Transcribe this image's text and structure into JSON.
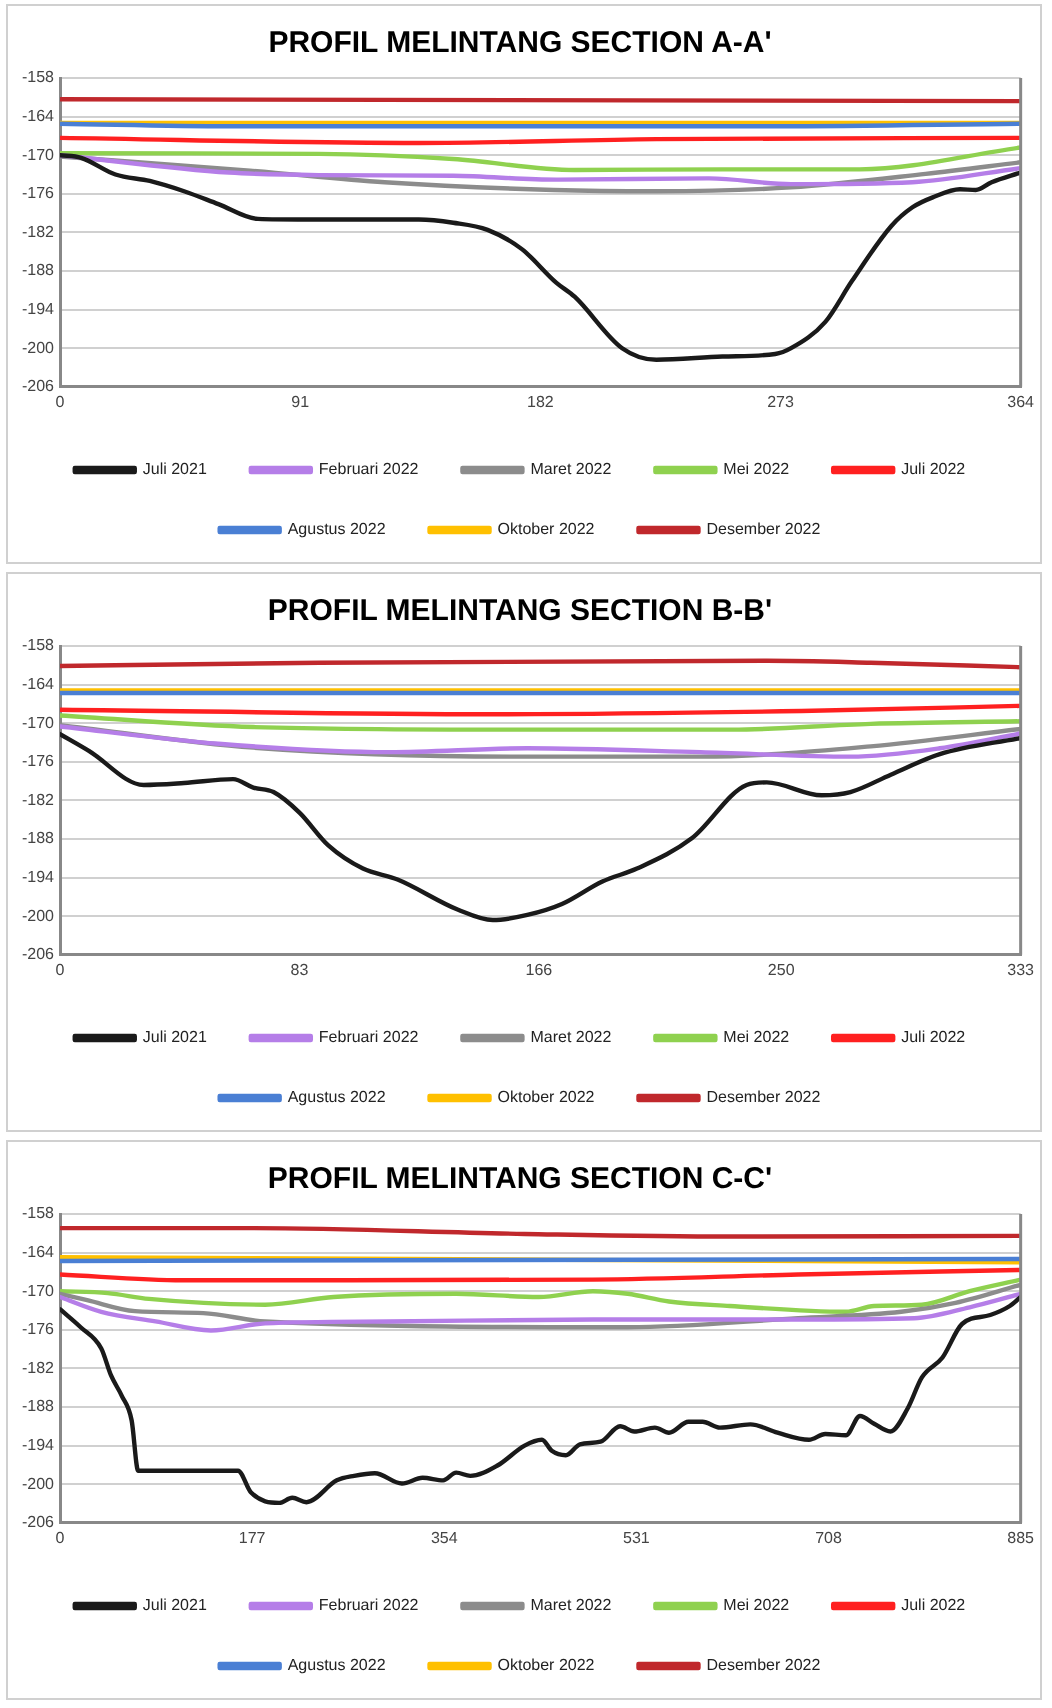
{
  "chart_data": [
    {
      "type": "line",
      "title": "PROFIL MELINTANG SECTION A-A'",
      "xlim": [
        0,
        364
      ],
      "xticks": [
        0,
        91,
        182,
        273,
        364
      ],
      "ylim": [
        -206,
        -158
      ],
      "yticks": [
        -158,
        -164,
        -170,
        -176,
        -182,
        -188,
        -194,
        -200,
        -206
      ],
      "grid": "y",
      "legend": "bottom",
      "marker": "none",
      "line_style": "solid",
      "series": [
        {
          "name": "Juli 2021",
          "color": "#1a1a1a",
          "x": [
            0,
            8,
            21,
            34,
            47,
            60,
            75,
            93,
            136,
            149,
            162,
            175,
            188,
            195,
            213,
            226,
            251,
            271,
            277,
            290,
            300,
            315,
            323,
            331,
            341,
            347,
            353,
            364
          ],
          "values": [
            -170,
            -170.4,
            -173,
            -174,
            -175.6,
            -177.6,
            -179.9,
            -180,
            -180,
            -180.5,
            -181.6,
            -184.6,
            -189.8,
            -192,
            -200,
            -201.8,
            -201.3,
            -200.9,
            -200,
            -195.9,
            -189.6,
            -181,
            -178.1,
            -176.5,
            -175.3,
            -175.4,
            -174.2,
            -172.7
          ]
        },
        {
          "name": "Februari 2022",
          "color": "#b57ee8",
          "x": [
            0,
            64,
            98,
            149,
            188,
            246,
            277,
            323,
            364
          ],
          "values": [
            -170,
            -172.7,
            -173.1,
            -173.2,
            -173.8,
            -173.6,
            -174.5,
            -174.2,
            -172
          ]
        },
        {
          "name": "Maret 2022",
          "color": "#8c8c8c",
          "x": [
            0,
            72,
            123,
            187,
            226,
            277,
            328,
            364
          ],
          "values": [
            -170.2,
            -172.4,
            -174.2,
            -175.4,
            -175.6,
            -175,
            -172.9,
            -171.1
          ]
        },
        {
          "name": "Mei 2022",
          "color": "#8fd14f",
          "x": [
            0,
            98,
            149,
            195,
            251,
            303,
            364
          ],
          "values": [
            -169.7,
            -169.8,
            -170.6,
            -172.3,
            -172.2,
            -172.2,
            -168.8
          ]
        },
        {
          "name": "Juli 2022",
          "color": "#ff2020",
          "x": [
            0,
            136,
            226,
            364
          ],
          "values": [
            -167.3,
            -168.1,
            -167.5,
            -167.3
          ]
        },
        {
          "name": "Agustus 2022",
          "color": "#4a7fd4",
          "x": [
            0,
            64,
            271,
            364
          ],
          "values": [
            -165.1,
            -165.5,
            -165.5,
            -165.1
          ]
        },
        {
          "name": "Oktober 2022",
          "color": "#ffc000",
          "x": [
            0,
            364
          ],
          "values": [
            -165,
            -165
          ]
        },
        {
          "name": "Desember 2022",
          "color": "#c0282c",
          "x": [
            0,
            364
          ],
          "values": [
            -161.3,
            -161.6
          ]
        }
      ]
    },
    {
      "type": "line",
      "title": "PROFIL MELINTANG SECTION B-B'",
      "xlim": [
        0,
        333
      ],
      "xticks": [
        0,
        83,
        166,
        250,
        333
      ],
      "ylim": [
        -206,
        -158
      ],
      "yticks": [
        -158,
        -164,
        -170,
        -176,
        -182,
        -188,
        -194,
        -200,
        -206
      ],
      "grid": "y",
      "legend": "bottom",
      "marker": "none",
      "line_style": "solid",
      "series": [
        {
          "name": "Juli 2021",
          "color": "#1a1a1a",
          "x": [
            0,
            10,
            29,
            43,
            60,
            67,
            74,
            83,
            93,
            105,
            117,
            138,
            150,
            162,
            174,
            188,
            200,
            219,
            238,
            245,
            264,
            274,
            288,
            305,
            333
          ],
          "values": [
            -171.7,
            -174.3,
            -179.6,
            -179.3,
            -178.7,
            -180,
            -180.7,
            -183.9,
            -189,
            -192.6,
            -194.3,
            -199,
            -200.6,
            -199.8,
            -198.1,
            -194.6,
            -192.6,
            -187.9,
            -179.6,
            -179.2,
            -181.2,
            -180.7,
            -178,
            -174.8,
            -172.3
          ]
        },
        {
          "name": "Februari 2022",
          "color": "#b57ee8",
          "x": [
            0,
            55,
            114,
            162,
            222,
            274,
            305,
            333
          ],
          "values": [
            -170.5,
            -173.2,
            -174.5,
            -173.9,
            -174.5,
            -175.2,
            -173.9,
            -171.6
          ]
        },
        {
          "name": "Maret 2022",
          "color": "#8c8c8c",
          "x": [
            0,
            67,
            162,
            222,
            281,
            333
          ],
          "values": [
            -170.3,
            -173.8,
            -175.2,
            -175.2,
            -173.6,
            -170.9
          ]
        },
        {
          "name": "Mei 2022",
          "color": "#8fd14f",
          "x": [
            0,
            67,
            162,
            233,
            281,
            333
          ],
          "values": [
            -168.8,
            -170.6,
            -171,
            -171,
            -170.1,
            -169.7
          ]
        },
        {
          "name": "Juli 2022",
          "color": "#ff2020",
          "x": [
            0,
            150,
            257,
            333
          ],
          "values": [
            -167.9,
            -168.6,
            -168.1,
            -167.3
          ]
        },
        {
          "name": "Agustus 2022",
          "color": "#4a7fd4",
          "x": [
            0,
            333
          ],
          "values": [
            -165.3,
            -165.3
          ]
        },
        {
          "name": "Oktober 2022",
          "color": "#ffc000",
          "x": [
            0,
            333
          ],
          "values": [
            -164.9,
            -164.9
          ]
        },
        {
          "name": "Desember 2022",
          "color": "#c0282c",
          "x": [
            0,
            90,
            245,
            281,
            333
          ],
          "values": [
            -161.1,
            -160.6,
            -160.3,
            -160.6,
            -161.3
          ]
        }
      ]
    },
    {
      "type": "line",
      "title": "PROFIL MELINTANG SECTION C-C'",
      "xlim": [
        0,
        885
      ],
      "xticks": [
        0,
        177,
        354,
        531,
        708,
        885
      ],
      "ylim": [
        -206,
        -158
      ],
      "yticks": [
        -158,
        -164,
        -170,
        -176,
        -182,
        -188,
        -194,
        -200,
        -206
      ],
      "grid": "y",
      "legend": "bottom",
      "marker": "none",
      "line_style": "solid",
      "series": [
        {
          "name": "Juli 2021",
          "color": "#1a1a1a",
          "x": [
            0,
            19,
            38,
            47,
            57,
            66,
            72,
            164,
            176,
            202,
            214,
            227,
            255,
            271,
            290,
            315,
            334,
            353,
            365,
            378,
            403,
            428,
            444,
            453,
            466,
            479,
            498,
            516,
            529,
            548,
            561,
            579,
            592,
            608,
            636,
            661,
            690,
            705,
            724,
            737,
            750,
            765,
            781,
            794,
            813,
            831,
            857,
            875,
            885
          ],
          "values": [
            -172.8,
            -175.6,
            -178.9,
            -183.1,
            -186.3,
            -190.1,
            -197.9,
            -197.9,
            -201.3,
            -202.9,
            -202.1,
            -202.8,
            -199.4,
            -198.7,
            -198.3,
            -199.9,
            -199,
            -199.4,
            -198.2,
            -198.7,
            -197.1,
            -194,
            -193.1,
            -194.8,
            -195.5,
            -193.8,
            -193.4,
            -191,
            -191.8,
            -191.2,
            -192,
            -190.3,
            -190.3,
            -191.2,
            -190.7,
            -192,
            -193.1,
            -192.2,
            -192.4,
            -189.4,
            -190.6,
            -191.8,
            -188.2,
            -183.4,
            -180.3,
            -175.1,
            -173.7,
            -172.3,
            -170.9
          ]
        },
        {
          "name": "Februari 2022",
          "color": "#b57ee8",
          "x": [
            0,
            38,
            88,
            139,
            189,
            302,
            491,
            680,
            787,
            838,
            885
          ],
          "values": [
            -170.9,
            -173.2,
            -174.7,
            -176.1,
            -175,
            -174.7,
            -174.4,
            -174.4,
            -174.2,
            -172.5,
            -170.4
          ]
        },
        {
          "name": "Maret 2022",
          "color": "#8c8c8c",
          "x": [
            0,
            25,
            69,
            132,
            189,
            365,
            523,
            680,
            775,
            825,
            885
          ],
          "values": [
            -170.4,
            -171.4,
            -173.1,
            -173.4,
            -174.7,
            null,
            -175.6,
            -174.2,
            -173.2,
            -171.8,
            -169
          ]
        },
        {
          "name": "Mei 2022",
          "color": "#8fd14f",
          "x": [
            0,
            44,
            82,
            189,
            252,
            365,
            441,
            491,
            523,
            561,
            617,
            724,
            750,
            794,
            838,
            885
          ],
          "values": [
            -170,
            -170.3,
            -171.2,
            -172.1,
            -170.9,
            -170.4,
            -170.9,
            -170,
            -170.4,
            -171.6,
            -172.3,
            -173.2,
            -172.3,
            -172.1,
            -170,
            -168.2
          ]
        },
        {
          "name": "Juli 2022",
          "color": "#ff2020",
          "x": [
            0,
            113,
            491,
            680,
            885
          ],
          "values": [
            -167.4,
            -168.3,
            -168.2,
            -167.4,
            -166.7
          ]
        },
        {
          "name": "Agustus 2022",
          "color": "#4a7fd4",
          "x": [
            0,
            885
          ],
          "values": [
            -165.3,
            -165
          ]
        },
        {
          "name": "Oktober 2022",
          "color": "#ffc000",
          "x": [
            0,
            885
          ],
          "values": [
            -164.7,
            -165.5
          ]
        },
        {
          "name": "Desember 2022",
          "color": "#c0282c",
          "x": [
            0,
            176,
            428,
            617,
            885
          ],
          "values": [
            -160.2,
            -160.2,
            -161.1,
            -161.5,
            -161.4
          ]
        }
      ]
    }
  ]
}
